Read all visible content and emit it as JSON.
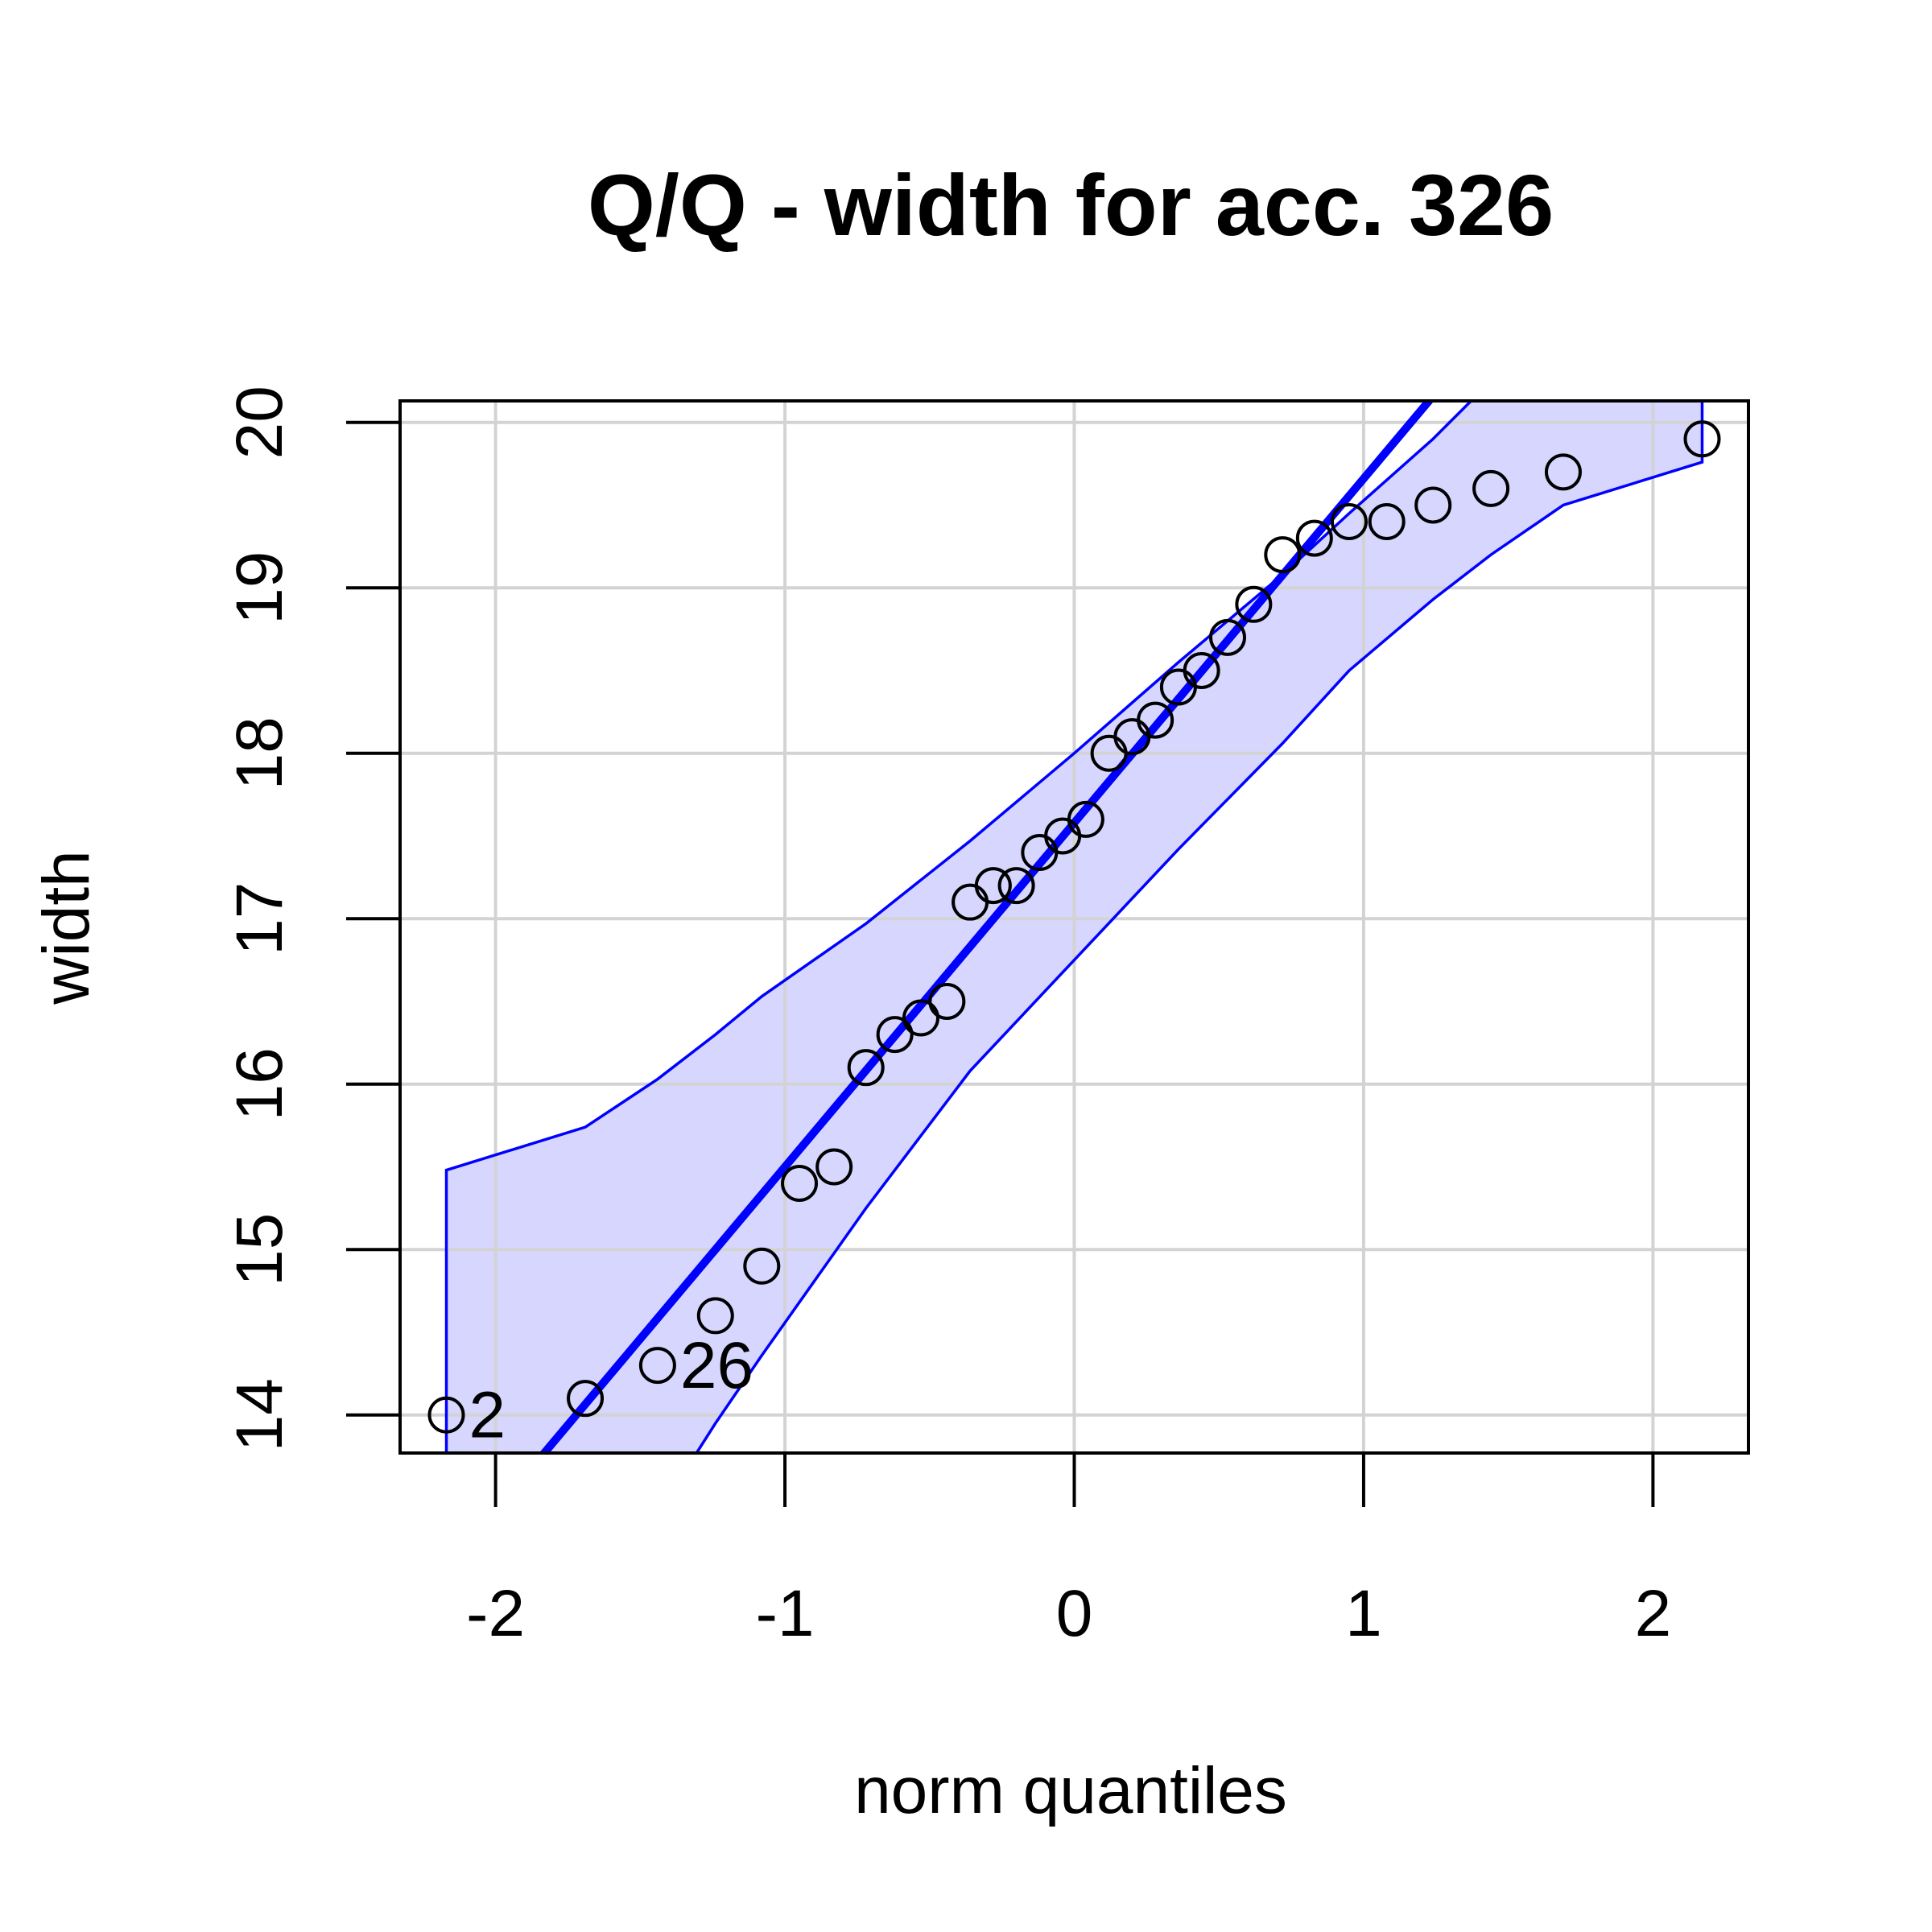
{
  "chart_data": {
    "type": "scatter",
    "title": "Q/Q - width for acc. 326",
    "xlabel": "norm quantiles",
    "ylabel": "width",
    "xlim": [
      -2.33,
      2.33
    ],
    "ylim": [
      13.77,
      20.13
    ],
    "x_ticks": [
      -2,
      -1,
      0,
      1,
      2
    ],
    "y_ticks": [
      14,
      15,
      16,
      17,
      18,
      19,
      20
    ],
    "grid": true,
    "colors": {
      "line": "#0000ff",
      "band_fill": "#d6d6ff",
      "grid": "#d3d3d3",
      "points": "#000000"
    },
    "points": [
      {
        "x": -2.17,
        "y": 14.0
      },
      {
        "x": -1.69,
        "y": 14.1
      },
      {
        "x": -1.44,
        "y": 14.3
      },
      {
        "x": -1.24,
        "y": 14.6
      },
      {
        "x": -1.08,
        "y": 14.9
      },
      {
        "x": -0.95,
        "y": 15.4
      },
      {
        "x": -0.83,
        "y": 15.5
      },
      {
        "x": -0.72,
        "y": 16.1
      },
      {
        "x": -0.62,
        "y": 16.3
      },
      {
        "x": -0.53,
        "y": 16.4
      },
      {
        "x": -0.44,
        "y": 16.5
      },
      {
        "x": -0.36,
        "y": 17.1
      },
      {
        "x": -0.28,
        "y": 17.2
      },
      {
        "x": -0.2,
        "y": 17.2
      },
      {
        "x": -0.12,
        "y": 17.4
      },
      {
        "x": -0.04,
        "y": 17.5
      },
      {
        "x": 0.04,
        "y": 17.6
      },
      {
        "x": 0.12,
        "y": 18.0
      },
      {
        "x": 0.2,
        "y": 18.1
      },
      {
        "x": 0.28,
        "y": 18.2
      },
      {
        "x": 0.36,
        "y": 18.4
      },
      {
        "x": 0.44,
        "y": 18.5
      },
      {
        "x": 0.53,
        "y": 18.7
      },
      {
        "x": 0.62,
        "y": 18.9
      },
      {
        "x": 0.72,
        "y": 19.2
      },
      {
        "x": 0.83,
        "y": 19.3
      },
      {
        "x": 0.95,
        "y": 19.4
      },
      {
        "x": 1.08,
        "y": 19.4
      },
      {
        "x": 1.24,
        "y": 19.5
      },
      {
        "x": 1.44,
        "y": 19.6
      },
      {
        "x": 1.69,
        "y": 19.7
      },
      {
        "x": 2.17,
        "y": 19.9
      }
    ],
    "labeled_points": [
      {
        "label": "2",
        "x": -2.17,
        "y": 14.0
      },
      {
        "label": "26",
        "x": -1.44,
        "y": 14.3
      }
    ],
    "reference_line": {
      "intercept": 17.58,
      "slope": 2.08
    },
    "envelope_upper": [
      {
        "x": -2.17,
        "y": 15.48
      },
      {
        "x": -1.69,
        "y": 15.74
      },
      {
        "x": -1.44,
        "y": 16.03
      },
      {
        "x": -1.24,
        "y": 16.3
      },
      {
        "x": -1.08,
        "y": 16.53
      },
      {
        "x": -0.72,
        "y": 16.97
      },
      {
        "x": -0.36,
        "y": 17.47
      },
      {
        "x": 0.0,
        "y": 18.0
      },
      {
        "x": 0.36,
        "y": 18.55
      },
      {
        "x": 0.72,
        "y": 19.08
      },
      {
        "x": 0.95,
        "y": 19.45
      },
      {
        "x": 1.24,
        "y": 19.9
      },
      {
        "x": 1.44,
        "y": 20.25
      }
    ],
    "envelope_lower": [
      {
        "x": -1.44,
        "y": 13.4
      },
      {
        "x": -1.24,
        "y": 13.95
      },
      {
        "x": -1.08,
        "y": 14.36
      },
      {
        "x": -0.72,
        "y": 15.25
      },
      {
        "x": -0.36,
        "y": 16.08
      },
      {
        "x": 0.0,
        "y": 16.75
      },
      {
        "x": 0.36,
        "y": 17.42
      },
      {
        "x": 0.72,
        "y": 18.06
      },
      {
        "x": 0.95,
        "y": 18.5
      },
      {
        "x": 1.24,
        "y": 18.93
      },
      {
        "x": 1.44,
        "y": 19.2
      },
      {
        "x": 1.69,
        "y": 19.5
      },
      {
        "x": 2.17,
        "y": 19.76
      }
    ],
    "envelope_top_right": {
      "x": 2.17,
      "y": 20.13
    },
    "envelope_bottom_left": {
      "x": -2.17,
      "y": 13.77
    }
  }
}
